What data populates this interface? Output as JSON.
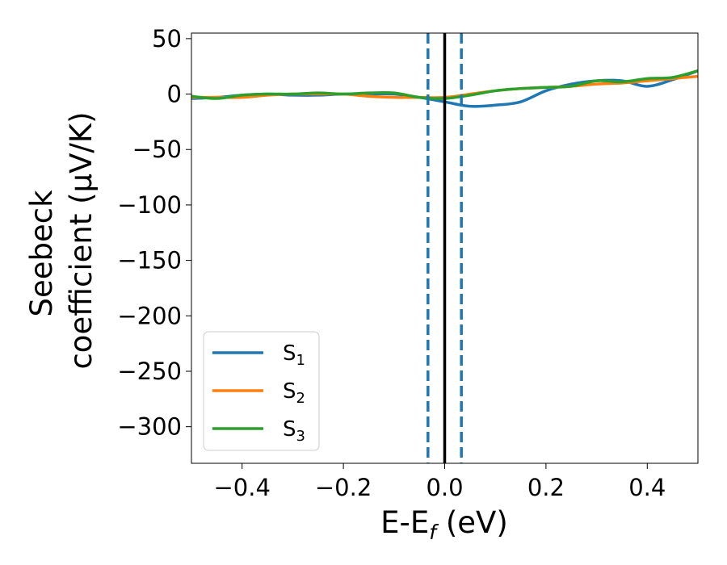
{
  "chart_data": {
    "type": "line",
    "xlabel": "E-E",
    "xlabel_sub": "f",
    "xlabel_unit": " (eV)",
    "ylabel_line1": "Seebeck",
    "ylabel_line2": "coefficient  (μV/K)",
    "xlim": [
      -0.5,
      0.5
    ],
    "ylim": [
      -333,
      55
    ],
    "xticks": [
      -0.4,
      -0.2,
      0.0,
      0.2,
      0.4
    ],
    "xtick_labels": [
      "−0.4",
      "−0.2",
      "0.0",
      "0.2",
      "0.4"
    ],
    "yticks": [
      50,
      0,
      -50,
      -100,
      -150,
      -200,
      -250,
      -300
    ],
    "ytick_labels": [
      "50",
      "0",
      "−50",
      "−100",
      "−150",
      "−200",
      "−250",
      "−300"
    ],
    "legend_position": "lower-left",
    "vertical_lines": [
      {
        "x": 0.0,
        "style": "solid",
        "color": "#000000"
      },
      {
        "x": -0.033,
        "style": "dashed",
        "color": "#1f77b4"
      },
      {
        "x": 0.033,
        "style": "dashed",
        "color": "#1f77b4"
      }
    ],
    "series": [
      {
        "name": "S",
        "sub": "1",
        "color": "#1f77b4",
        "x": [
          -0.5,
          -0.45,
          -0.4,
          -0.35,
          -0.3,
          -0.25,
          -0.2,
          -0.15,
          -0.1,
          -0.05,
          0.0,
          0.05,
          0.1,
          0.15,
          0.2,
          0.25,
          0.3,
          0.35,
          0.4,
          0.45,
          0.5
        ],
        "y": [
          -4,
          -3,
          -1,
          0,
          -1,
          -1,
          0,
          0,
          0,
          -3,
          -7,
          -11,
          -10,
          -7,
          3,
          9,
          12,
          12,
          7,
          13,
          21
        ]
      },
      {
        "name": "S",
        "sub": "2",
        "color": "#ff7f0e",
        "x": [
          -0.5,
          -0.45,
          -0.4,
          -0.35,
          -0.3,
          -0.25,
          -0.2,
          -0.15,
          -0.1,
          -0.05,
          0.0,
          0.05,
          0.1,
          0.15,
          0.2,
          0.25,
          0.3,
          0.35,
          0.4,
          0.45,
          0.5
        ],
        "y": [
          -3,
          -3,
          -3,
          -1,
          0,
          0,
          0,
          -2,
          -3,
          -3,
          -3,
          0,
          3,
          5,
          6,
          7,
          9,
          10,
          12,
          14,
          16
        ]
      },
      {
        "name": "S",
        "sub": "3",
        "color": "#2ca02c",
        "x": [
          -0.5,
          -0.45,
          -0.4,
          -0.35,
          -0.3,
          -0.25,
          -0.2,
          -0.15,
          -0.1,
          -0.05,
          0.0,
          0.05,
          0.1,
          0.15,
          0.2,
          0.25,
          0.3,
          0.35,
          0.4,
          0.45,
          0.5
        ],
        "y": [
          -2,
          -4,
          -1,
          0,
          0,
          1,
          0,
          1,
          1,
          -3,
          -4,
          -1,
          3,
          5,
          6,
          7,
          12,
          11,
          14,
          15,
          21
        ]
      }
    ]
  }
}
